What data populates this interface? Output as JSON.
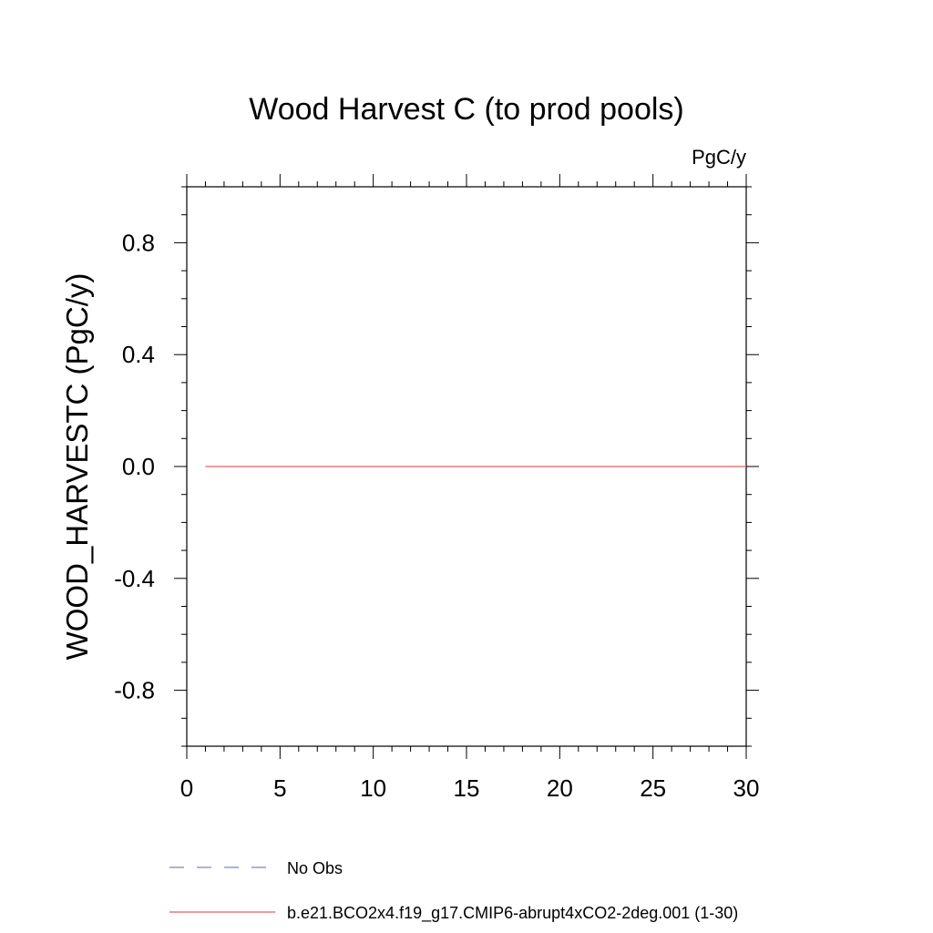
{
  "chart_data": {
    "type": "line",
    "title": "Wood Harvest C (to prod pools)",
    "units": "PgC/y",
    "xlabel": "",
    "ylabel": "WOOD_HARVESTC  (PgC/y)",
    "xlim": [
      0,
      30
    ],
    "ylim": [
      -1.0,
      1.0
    ],
    "xticks": [
      0,
      5,
      10,
      15,
      20,
      25,
      30
    ],
    "xtick_labels": [
      "0",
      "5",
      "10",
      "15",
      "20",
      "25",
      "30"
    ],
    "yticks": [
      0.8,
      0.4,
      0.0,
      -0.4,
      -0.8
    ],
    "ytick_labels": [
      "0.8",
      "0.4",
      "0.0",
      "-0.4",
      "-0.8"
    ],
    "grid": false,
    "legend_position": "bottom",
    "series": [
      {
        "name": "No Obs",
        "color": "#8080d0",
        "dash": "dashed",
        "x": [],
        "y": []
      },
      {
        "name": "b.e21.BCO2x4.f19_g17.CMIP6-abrupt4xCO2-2deg.001 (1-30)",
        "color": "#e06060",
        "dash": "solid",
        "x": [
          1,
          30
        ],
        "y": [
          0.0,
          0.0
        ]
      }
    ]
  }
}
